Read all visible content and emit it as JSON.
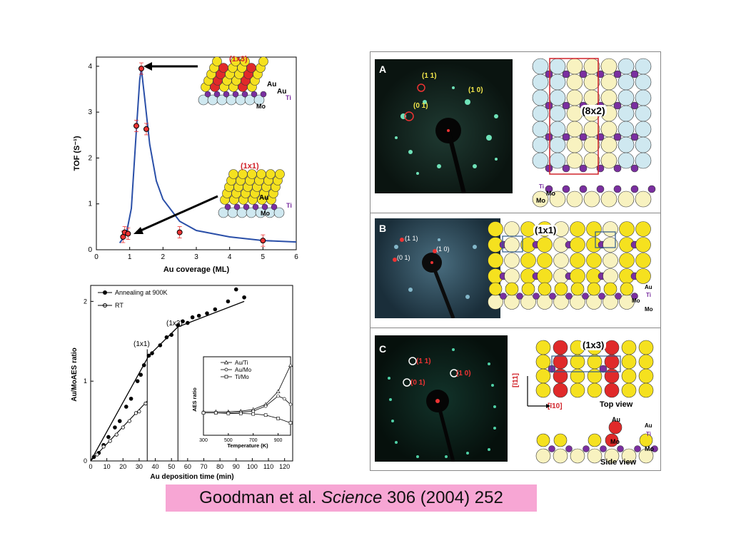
{
  "citation": {
    "authors": "Goodman et al.",
    "journal": "Science",
    "ref": "306 (2004) 252"
  },
  "chart_data": [
    {
      "type": "line",
      "xlabel": "Au coverage (ML)",
      "ylabel": "TOF (S⁻¹)",
      "xlim": [
        0,
        6
      ],
      "ylim": [
        0,
        4.2
      ],
      "xticks": [
        "0",
        "1",
        "2",
        "3",
        "4",
        "5",
        "6"
      ],
      "yticks": [
        "0",
        "1",
        "2",
        "3",
        "4"
      ],
      "points": [
        {
          "x": 0.8,
          "y": 0.28
        },
        {
          "x": 0.85,
          "y": 0.38
        },
        {
          "x": 0.95,
          "y": 0.35
        },
        {
          "x": 1.2,
          "y": 2.7
        },
        {
          "x": 1.35,
          "y": 3.95
        },
        {
          "x": 1.5,
          "y": 2.63
        },
        {
          "x": 2.5,
          "y": 0.38
        },
        {
          "x": 5.0,
          "y": 0.2
        }
      ],
      "curve": [
        [
          0.7,
          0.15
        ],
        [
          0.9,
          0.35
        ],
        [
          1.05,
          0.9
        ],
        [
          1.2,
          2.6
        ],
        [
          1.3,
          3.7
        ],
        [
          1.35,
          3.95
        ],
        [
          1.45,
          3.3
        ],
        [
          1.6,
          2.3
        ],
        [
          1.8,
          1.5
        ],
        [
          2.0,
          1.1
        ],
        [
          2.5,
          0.62
        ],
        [
          3.0,
          0.42
        ],
        [
          4.0,
          0.28
        ],
        [
          5.0,
          0.2
        ],
        [
          6.0,
          0.17
        ]
      ],
      "annotations": [
        "(1x3)",
        "(1x1)"
      ],
      "model_labels": [
        "Au",
        "Au",
        "Ti",
        "Mo",
        "Au",
        "Ti",
        "Mo"
      ]
    },
    {
      "type": "scatter",
      "xlabel": "Au deposition time (min)",
      "ylabel": "Au/MoAES ratio",
      "xlim": [
        0,
        125
      ],
      "ylim": [
        0,
        2.2
      ],
      "xticks": [
        "0",
        "10",
        "20",
        "30",
        "40",
        "50",
        "60",
        "70",
        "80",
        "90",
        "100",
        "110",
        "120"
      ],
      "yticks": [
        "0",
        "1",
        "2"
      ],
      "legend": [
        "Annealing at 900K",
        "RT"
      ],
      "annotations": [
        "(1x1)",
        "(1x3)"
      ],
      "series": [
        {
          "name": "Annealing at 900K",
          "points": [
            [
              2,
              0.05
            ],
            [
              5,
              0.1
            ],
            [
              8,
              0.2
            ],
            [
              11,
              0.3
            ],
            [
              15,
              0.42
            ],
            [
              18,
              0.5
            ],
            [
              22,
              0.68
            ],
            [
              25,
              0.78
            ],
            [
              29,
              1.0
            ],
            [
              31,
              1.08
            ],
            [
              33,
              1.2
            ],
            [
              36,
              1.32
            ],
            [
              38,
              1.35
            ],
            [
              43,
              1.45
            ],
            [
              47,
              1.55
            ],
            [
              50,
              1.58
            ],
            [
              54,
              1.7
            ],
            [
              57,
              1.75
            ],
            [
              60,
              1.73
            ],
            [
              63,
              1.8
            ],
            [
              67,
              1.82
            ],
            [
              72,
              1.85
            ],
            [
              77,
              1.9
            ],
            [
              85,
              2.0
            ],
            [
              90,
              2.15
            ],
            [
              95,
              2.05
            ]
          ]
        },
        {
          "name": "RT",
          "points": [
            [
              4,
              0.08
            ],
            [
              8,
              0.18
            ],
            [
              12,
              0.25
            ],
            [
              16,
              0.33
            ],
            [
              20,
              0.42
            ],
            [
              24,
              0.5
            ],
            [
              28,
              0.6
            ],
            [
              30,
              0.62
            ],
            [
              34,
              0.72
            ]
          ]
        }
      ]
    },
    {
      "type": "line",
      "xlabel": "Temperature (K)",
      "ylabel": "AES ratio",
      "xlim": [
        300,
        1000
      ],
      "xticks": [
        "300",
        "500",
        "700",
        "900"
      ],
      "legend": [
        "Au/Ti",
        "Au/Mo",
        "Ti/Mo"
      ],
      "series": [
        {
          "name": "Au/Ti",
          "points": [
            [
              300,
              0.42
            ],
            [
              400,
              0.42
            ],
            [
              500,
              0.42
            ],
            [
              600,
              0.43
            ],
            [
              700,
              0.46
            ],
            [
              800,
              0.55
            ],
            [
              900,
              0.78
            ],
            [
              1000,
              1.25
            ]
          ]
        },
        {
          "name": "Au/Mo",
          "points": [
            [
              300,
              0.4
            ],
            [
              400,
              0.4
            ],
            [
              500,
              0.4
            ],
            [
              600,
              0.41
            ],
            [
              700,
              0.43
            ],
            [
              800,
              0.52
            ],
            [
              900,
              0.7
            ],
            [
              950,
              0.65
            ],
            [
              1000,
              0.55
            ]
          ]
        },
        {
          "name": "Ti/Mo",
          "points": [
            [
              300,
              0.4
            ],
            [
              400,
              0.4
            ],
            [
              500,
              0.39
            ],
            [
              600,
              0.39
            ],
            [
              700,
              0.38
            ],
            [
              800,
              0.36
            ],
            [
              900,
              0.3
            ],
            [
              1000,
              0.22
            ]
          ]
        }
      ]
    }
  ],
  "leed_panels": [
    {
      "letter": "A",
      "spots": [
        "(1 1)",
        "(1 0)",
        "(0 1)"
      ],
      "model_label": "(8x2)",
      "side_labels": [
        "Ti",
        "Mo",
        "Mo"
      ]
    },
    {
      "letter": "B",
      "spots": [
        "(1 1)",
        "(0 1)",
        "(1 0)"
      ],
      "model_label": "(1x1)",
      "side_labels": [
        "Au",
        "Ti",
        "Mo",
        "Mo"
      ]
    },
    {
      "letter": "C",
      "spots": [
        "(1 1)",
        "(1 0)",
        "(0 1)"
      ],
      "model_label": "(1x3)",
      "dir_vertical": "[ī11]",
      "dir_horizontal": "[ī10]",
      "top_view": "Top view",
      "side_view": "Side view",
      "side_labels": [
        "Au",
        "Au",
        "Ti",
        "Mo",
        "Mo"
      ]
    }
  ]
}
